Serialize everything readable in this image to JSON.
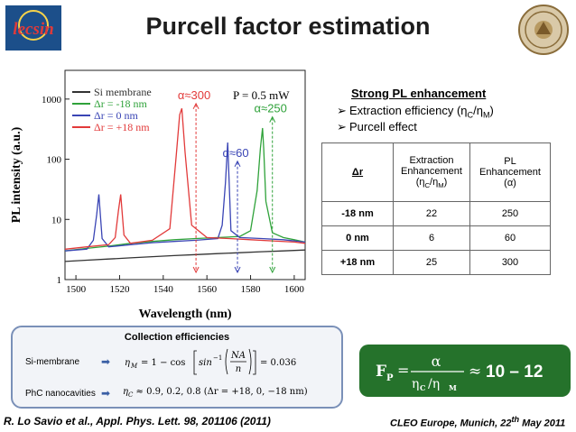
{
  "title": "Purcell factor estimation",
  "logo_left": {
    "text": "lecsin"
  },
  "logo_right": {
    "icon": "university-seal-icon"
  },
  "right_panel": {
    "heading": "Strong PL enhancement",
    "bullets": [
      "Extraction efficiency (η",
      "C",
      "/η",
      "M",
      ")",
      "Purcell effect"
    ],
    "bullet_arrow": "➢"
  },
  "table": {
    "headers": {
      "dr": "Δr",
      "extraction": [
        "Extraction",
        "Enhancement",
        "(η",
        "C",
        "/η",
        "M",
        ")"
      ],
      "pl": [
        "PL",
        "Enhancement",
        "(α)"
      ]
    },
    "rows": [
      {
        "dr": "-18 nm",
        "extraction": "22",
        "pl": "250"
      },
      {
        "dr": "0 nm",
        "extraction": "6",
        "pl": "60"
      },
      {
        "dr": "+18 nm",
        "extraction": "25",
        "pl": "300"
      }
    ]
  },
  "collection": {
    "title": "Collection efficiencies",
    "si_label": "Si-membrane",
    "phc_label": "PhC nanocavities",
    "arrow": "➡",
    "si_formula": {
      "lhs": "η",
      "lhs_sub": "M",
      "eq": "= 1 − cos",
      "asin": "sin",
      "asin_sup": "−1",
      "num": "NA",
      "den": "n",
      "result": "= 0.036"
    },
    "phc_formula": {
      "lhs": "η",
      "lhs_sub": "C",
      "text": "≈ 0.9, 0.2, 0.8  (Δr = +18, 0, −18 nm)"
    }
  },
  "purcell_formula": {
    "lhs": "F",
    "lhs_sub": "P",
    "eq": "=",
    "num": "α",
    "den_a": "η",
    "den_a_sub": "C",
    "den_b": "/η",
    "den_b_sub": "M",
    "approx": "≈",
    "result": "10 – 12",
    "bg_color": "#25722b"
  },
  "reference": "R. Lo Savio et al., Appl. Phys. Lett. 98, 201106 (2011)",
  "conference": {
    "pre": "CLEO Europe, Munich, 22",
    "sup": "th",
    "post": " May 2011"
  },
  "chart_data": {
    "type": "line",
    "xlabel": "Wavelength (nm)",
    "ylabel": "PL intensity (a.u.)",
    "xlim": [
      1495,
      1605
    ],
    "ylim": [
      1,
      3000
    ],
    "yscale": "log",
    "xticks": [
      1500,
      1520,
      1540,
      1560,
      1580,
      1600
    ],
    "xtick_labels": [
      "1500",
      "1520",
      "1540",
      "1560",
      "1580",
      "1600"
    ],
    "yticks": [
      1,
      10,
      100,
      1000
    ],
    "ytick_labels": [
      "1",
      "10",
      "100",
      "1000"
    ],
    "legend_placement": "top-left",
    "power_label": "P = 0.5 mW",
    "series": [
      {
        "name": "Si membrane",
        "color": "#333333",
        "x": [
          1495,
          1505,
          1515,
          1525,
          1535,
          1545,
          1555,
          1565,
          1575,
          1585,
          1595,
          1605
        ],
        "y": [
          2.0,
          2.1,
          2.2,
          2.3,
          2.4,
          2.5,
          2.6,
          2.7,
          2.8,
          2.9,
          3.0,
          3.1
        ]
      },
      {
        "name": "Δr = -18 nm",
        "color": "#2fa23a",
        "x": [
          1495,
          1505,
          1515,
          1525,
          1535,
          1545,
          1555,
          1565,
          1575,
          1580,
          1583,
          1584.5,
          1585.5,
          1586,
          1587,
          1590,
          1595,
          1600,
          1605
        ],
        "y": [
          3.0,
          3.3,
          3.6,
          4.0,
          4.3,
          4.6,
          4.8,
          5.0,
          5.2,
          6.5,
          30,
          150,
          330,
          150,
          20,
          6.0,
          5.0,
          4.6,
          4.2
        ]
      },
      {
        "name": "Δr = 0 nm",
        "color": "#3a45b5",
        "x": [
          1495,
          1505,
          1508,
          1509.5,
          1510.5,
          1512,
          1515,
          1525,
          1535,
          1545,
          1555,
          1565,
          1567,
          1568.5,
          1569.5,
          1571,
          1575,
          1585,
          1595,
          1605
        ],
        "y": [
          3.0,
          3.2,
          4.5,
          12,
          26,
          4.8,
          3.5,
          3.8,
          4.1,
          4.3,
          4.5,
          4.8,
          8,
          40,
          190,
          6.5,
          5.0,
          4.8,
          4.6,
          4.2
        ]
      },
      {
        "name": "Δr = +18 nm",
        "color": "#e23a3a",
        "x": [
          1495,
          1505,
          1515,
          1518,
          1519.5,
          1520.5,
          1522,
          1525,
          1535,
          1543,
          1546,
          1547.5,
          1548.5,
          1550,
          1553,
          1560,
          1570,
          1580,
          1590,
          1600,
          1605
        ],
        "y": [
          3.2,
          3.5,
          3.8,
          5.0,
          14,
          26,
          5.5,
          4.0,
          4.5,
          7,
          120,
          550,
          700,
          130,
          8,
          5.0,
          4.8,
          4.6,
          4.4,
          4.2,
          4.0
        ]
      }
    ],
    "annotations": [
      {
        "text": "α≈300",
        "x": 1555,
        "y": 1000,
        "color": "#e23a3a"
      },
      {
        "text": "α≈250",
        "x": 1590,
        "y": 600,
        "color": "#2fa23a"
      },
      {
        "text": "α≈60",
        "x": 1574,
        "y": 110,
        "color": "#3a45b5"
      }
    ]
  }
}
